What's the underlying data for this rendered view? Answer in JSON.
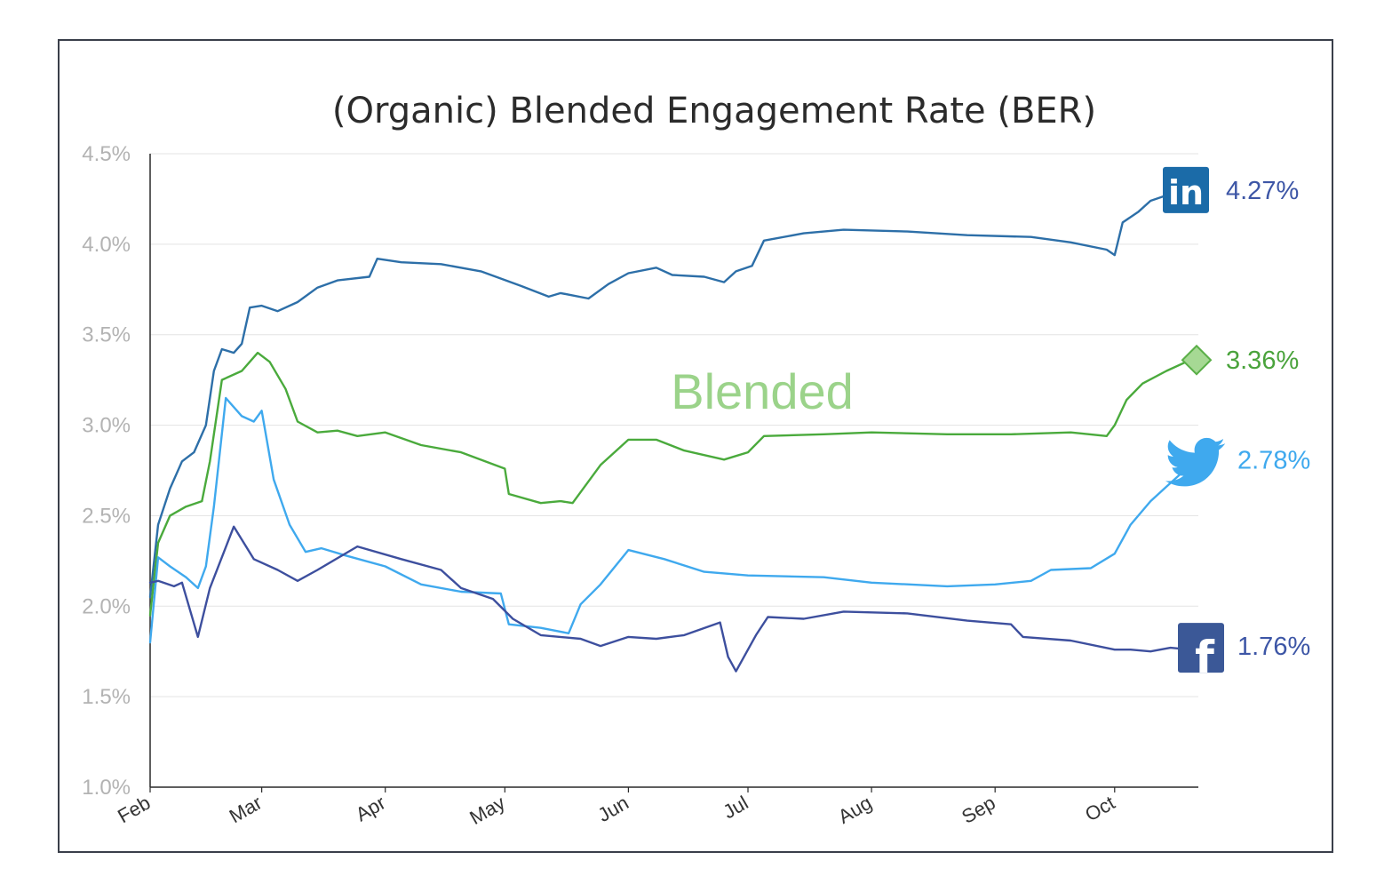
{
  "chart_data": {
    "type": "line",
    "title": "(Organic) Blended Engagement Rate (BER)",
    "ylim": [
      0.01,
      0.045
    ],
    "y_ticks": [
      "1.0%",
      "1.5%",
      "2.0%",
      "2.5%",
      "3.0%",
      "3.5%",
      "4.0%",
      "4.5%"
    ],
    "y_tick_values": [
      0.01,
      0.015,
      0.02,
      0.025,
      0.03,
      0.035,
      0.04,
      0.045
    ],
    "x_range": [
      "2014-02-01",
      "2014-10-22"
    ],
    "x_ticks": [
      "Feb",
      "Mar",
      "Apr",
      "May",
      "Jun",
      "Jul",
      "Aug",
      "Sep",
      "Oct"
    ],
    "x_tick_dates": [
      "2014-02-01",
      "2014-03-01",
      "2014-04-01",
      "2014-05-01",
      "2014-06-01",
      "2014-07-01",
      "2014-08-01",
      "2014-09-01",
      "2014-10-01"
    ],
    "grid": true,
    "annotation": "Blended",
    "series": [
      {
        "key": "linkedin",
        "end_label": "4.27%",
        "icon": "linkedin-icon",
        "color": "#2d6fa8",
        "label_color": "#3d56a6",
        "points": [
          [
            "2014-02-01",
            0.0205
          ],
          [
            "2014-02-03",
            0.0245
          ],
          [
            "2014-02-06",
            0.0265
          ],
          [
            "2014-02-09",
            0.028
          ],
          [
            "2014-02-12",
            0.0285
          ],
          [
            "2014-02-15",
            0.03
          ],
          [
            "2014-02-17",
            0.033
          ],
          [
            "2014-02-19",
            0.0342
          ],
          [
            "2014-02-22",
            0.034
          ],
          [
            "2014-02-24",
            0.0345
          ],
          [
            "2014-02-26",
            0.0365
          ],
          [
            "2014-03-01",
            0.0366
          ],
          [
            "2014-03-05",
            0.0363
          ],
          [
            "2014-03-10",
            0.0368
          ],
          [
            "2014-03-15",
            0.0376
          ],
          [
            "2014-03-20",
            0.038
          ],
          [
            "2014-03-28",
            0.0382
          ],
          [
            "2014-03-30",
            0.0392
          ],
          [
            "2014-04-05",
            0.039
          ],
          [
            "2014-04-15",
            0.0389
          ],
          [
            "2014-04-25",
            0.0385
          ],
          [
            "2014-05-05",
            0.0377
          ],
          [
            "2014-05-12",
            0.0371
          ],
          [
            "2014-05-15",
            0.0373
          ],
          [
            "2014-05-22",
            0.037
          ],
          [
            "2014-05-27",
            0.0378
          ],
          [
            "2014-06-01",
            0.0384
          ],
          [
            "2014-06-08",
            0.0387
          ],
          [
            "2014-06-12",
            0.0383
          ],
          [
            "2014-06-20",
            0.0382
          ],
          [
            "2014-06-25",
            0.0379
          ],
          [
            "2014-06-28",
            0.0385
          ],
          [
            "2014-07-02",
            0.0388
          ],
          [
            "2014-07-05",
            0.0402
          ],
          [
            "2014-07-15",
            0.0406
          ],
          [
            "2014-07-25",
            0.0408
          ],
          [
            "2014-08-10",
            0.0407
          ],
          [
            "2014-08-25",
            0.0405
          ],
          [
            "2014-09-10",
            0.0404
          ],
          [
            "2014-09-20",
            0.0401
          ],
          [
            "2014-09-29",
            0.0397
          ],
          [
            "2014-10-01",
            0.0394
          ],
          [
            "2014-10-03",
            0.0412
          ],
          [
            "2014-10-07",
            0.0418
          ],
          [
            "2014-10-10",
            0.0424
          ],
          [
            "2014-10-14",
            0.0427
          ]
        ]
      },
      {
        "key": "blended",
        "end_label": "3.36%",
        "icon": "diamond-marker-icon",
        "color": "#4aaa3c",
        "label_color": "#4aa33c",
        "points": [
          [
            "2014-02-01",
            0.0195
          ],
          [
            "2014-02-03",
            0.0235
          ],
          [
            "2014-02-06",
            0.025
          ],
          [
            "2014-02-10",
            0.0255
          ],
          [
            "2014-02-14",
            0.0258
          ],
          [
            "2014-02-16",
            0.028
          ],
          [
            "2014-02-19",
            0.0325
          ],
          [
            "2014-02-24",
            0.033
          ],
          [
            "2014-02-28",
            0.034
          ],
          [
            "2014-03-03",
            0.0335
          ],
          [
            "2014-03-07",
            0.032
          ],
          [
            "2014-03-10",
            0.0302
          ],
          [
            "2014-03-15",
            0.0296
          ],
          [
            "2014-03-20",
            0.0297
          ],
          [
            "2014-03-25",
            0.0294
          ],
          [
            "2014-04-01",
            0.0296
          ],
          [
            "2014-04-10",
            0.0289
          ],
          [
            "2014-04-20",
            0.0285
          ],
          [
            "2014-05-01",
            0.0276
          ],
          [
            "2014-05-02",
            0.0262
          ],
          [
            "2014-05-10",
            0.0257
          ],
          [
            "2014-05-15",
            0.0258
          ],
          [
            "2014-05-18",
            0.0257
          ],
          [
            "2014-05-25",
            0.0278
          ],
          [
            "2014-06-01",
            0.0292
          ],
          [
            "2014-06-08",
            0.0292
          ],
          [
            "2014-06-15",
            0.0286
          ],
          [
            "2014-06-25",
            0.0281
          ],
          [
            "2014-07-01",
            0.0285
          ],
          [
            "2014-07-05",
            0.0294
          ],
          [
            "2014-07-20",
            0.0295
          ],
          [
            "2014-08-01",
            0.0296
          ],
          [
            "2014-08-20",
            0.0295
          ],
          [
            "2014-09-05",
            0.0295
          ],
          [
            "2014-09-20",
            0.0296
          ],
          [
            "2014-09-29",
            0.0294
          ],
          [
            "2014-10-01",
            0.03
          ],
          [
            "2014-10-04",
            0.0314
          ],
          [
            "2014-10-08",
            0.0323
          ],
          [
            "2014-10-14",
            0.033
          ],
          [
            "2014-10-20",
            0.0336
          ]
        ]
      },
      {
        "key": "twitter",
        "end_label": "2.78%",
        "icon": "twitter-bird-icon",
        "color": "#3fa9ee",
        "label_color": "#3fa9ee",
        "points": [
          [
            "2014-02-01",
            0.018
          ],
          [
            "2014-02-03",
            0.0227
          ],
          [
            "2014-02-06",
            0.0222
          ],
          [
            "2014-02-10",
            0.0216
          ],
          [
            "2014-02-13",
            0.021
          ],
          [
            "2014-02-15",
            0.0222
          ],
          [
            "2014-02-17",
            0.0255
          ],
          [
            "2014-02-20",
            0.0315
          ],
          [
            "2014-02-24",
            0.0305
          ],
          [
            "2014-02-27",
            0.0302
          ],
          [
            "2014-03-01",
            0.0308
          ],
          [
            "2014-03-04",
            0.027
          ],
          [
            "2014-03-08",
            0.0245
          ],
          [
            "2014-03-12",
            0.023
          ],
          [
            "2014-03-16",
            0.0232
          ],
          [
            "2014-03-22",
            0.0228
          ],
          [
            "2014-04-01",
            0.0222
          ],
          [
            "2014-04-10",
            0.0212
          ],
          [
            "2014-04-20",
            0.0208
          ],
          [
            "2014-04-30",
            0.0207
          ],
          [
            "2014-05-02",
            0.019
          ],
          [
            "2014-05-10",
            0.0188
          ],
          [
            "2014-05-17",
            0.0185
          ],
          [
            "2014-05-20",
            0.0201
          ],
          [
            "2014-05-25",
            0.0212
          ],
          [
            "2014-06-01",
            0.0231
          ],
          [
            "2014-06-10",
            0.0226
          ],
          [
            "2014-06-20",
            0.0219
          ],
          [
            "2014-07-01",
            0.0217
          ],
          [
            "2014-07-20",
            0.0216
          ],
          [
            "2014-08-01",
            0.0213
          ],
          [
            "2014-08-20",
            0.0211
          ],
          [
            "2014-09-01",
            0.0212
          ],
          [
            "2014-09-10",
            0.0214
          ],
          [
            "2014-09-15",
            0.022
          ],
          [
            "2014-09-25",
            0.0221
          ],
          [
            "2014-10-01",
            0.0229
          ],
          [
            "2014-10-05",
            0.0245
          ],
          [
            "2014-10-10",
            0.0258
          ],
          [
            "2014-10-14",
            0.0266
          ],
          [
            "2014-10-18",
            0.0274
          ],
          [
            "2014-10-20",
            0.0278
          ]
        ]
      },
      {
        "key": "facebook",
        "end_label": "1.76%",
        "icon": "facebook-icon",
        "color": "#3d4f9e",
        "label_color": "#3d56a6",
        "points": [
          [
            "2014-02-01",
            0.0213
          ],
          [
            "2014-02-03",
            0.0214
          ],
          [
            "2014-02-07",
            0.0211
          ],
          [
            "2014-02-09",
            0.0213
          ],
          [
            "2014-02-13",
            0.0183
          ],
          [
            "2014-02-16",
            0.021
          ],
          [
            "2014-02-22",
            0.0244
          ],
          [
            "2014-02-27",
            0.0226
          ],
          [
            "2014-03-05",
            0.022
          ],
          [
            "2014-03-10",
            0.0214
          ],
          [
            "2014-03-15",
            0.022
          ],
          [
            "2014-03-25",
            0.0233
          ],
          [
            "2014-04-05",
            0.0226
          ],
          [
            "2014-04-15",
            0.022
          ],
          [
            "2014-04-20",
            0.021
          ],
          [
            "2014-04-28",
            0.0204
          ],
          [
            "2014-05-03",
            0.0193
          ],
          [
            "2014-05-10",
            0.0184
          ],
          [
            "2014-05-20",
            0.0182
          ],
          [
            "2014-05-25",
            0.0178
          ],
          [
            "2014-06-01",
            0.0183
          ],
          [
            "2014-06-08",
            0.0182
          ],
          [
            "2014-06-15",
            0.0184
          ],
          [
            "2014-06-24",
            0.0191
          ],
          [
            "2014-06-26",
            0.0172
          ],
          [
            "2014-06-28",
            0.0164
          ],
          [
            "2014-06-30",
            0.0172
          ],
          [
            "2014-07-03",
            0.0184
          ],
          [
            "2014-07-06",
            0.0194
          ],
          [
            "2014-07-15",
            0.0193
          ],
          [
            "2014-07-25",
            0.0197
          ],
          [
            "2014-08-10",
            0.0196
          ],
          [
            "2014-08-25",
            0.0192
          ],
          [
            "2014-09-05",
            0.019
          ],
          [
            "2014-09-08",
            0.0183
          ],
          [
            "2014-09-20",
            0.0181
          ],
          [
            "2014-10-01",
            0.0176
          ],
          [
            "2014-10-05",
            0.0176
          ],
          [
            "2014-10-10",
            0.0175
          ],
          [
            "2014-10-15",
            0.0177
          ],
          [
            "2014-10-20",
            0.0176
          ]
        ]
      }
    ]
  }
}
